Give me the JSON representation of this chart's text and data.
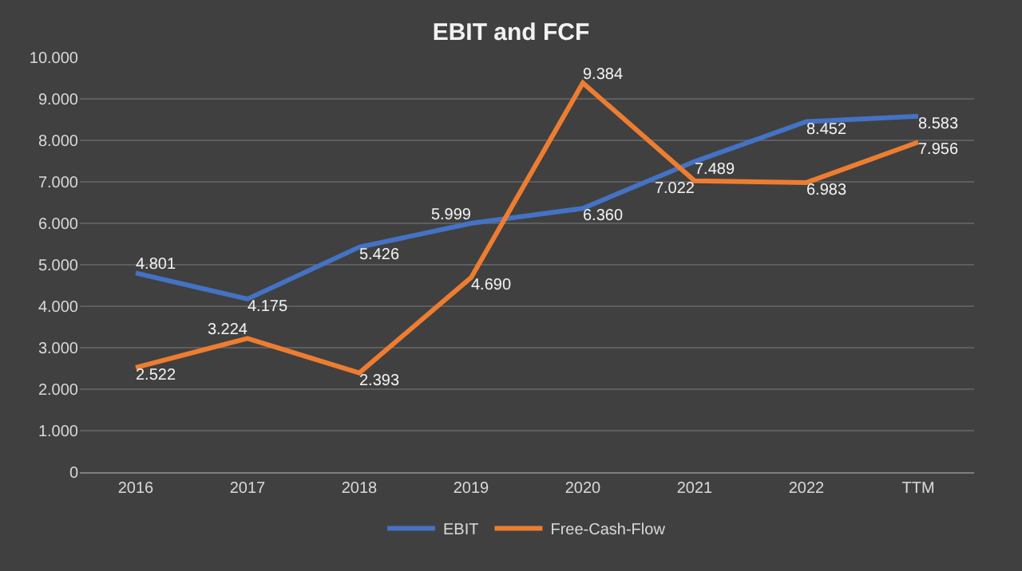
{
  "chart_data": {
    "type": "line",
    "title": "EBIT and FCF",
    "categories": [
      "2016",
      "2017",
      "2018",
      "2019",
      "2020",
      "2021",
      "2022",
      "TTM"
    ],
    "series": [
      {
        "name": "EBIT",
        "color": "#4472c4",
        "values": [
          4801,
          4175,
          5426,
          5999,
          6360,
          7489,
          8452,
          8583
        ],
        "value_labels": [
          "4.801",
          "4.175",
          "5.426",
          "5.999",
          "6.360",
          "7.489",
          "8.452",
          "8.583"
        ]
      },
      {
        "name": "Free-Cash-Flow",
        "color": "#ed7d31",
        "values": [
          2522,
          3224,
          2393,
          4690,
          9384,
          7022,
          6983,
          7956
        ],
        "value_labels": [
          "2.522",
          "3.224",
          "2.393",
          "4.690",
          "9.384",
          "7.022",
          "6.983",
          "7.956"
        ]
      }
    ],
    "ylim": [
      0,
      10000
    ],
    "yticks": [
      0,
      {
        "value": 1000,
        "label": "1.000"
      },
      {
        "value": 2000,
        "label": "2.000"
      },
      {
        "value": 3000,
        "label": "3.000"
      },
      {
        "value": 4000,
        "label": "4.000"
      },
      {
        "value": 5000,
        "label": "5.000"
      },
      {
        "value": 6000,
        "label": "6.000"
      },
      {
        "value": 7000,
        "label": "7.000"
      },
      {
        "value": 8000,
        "label": "8.000"
      },
      {
        "value": 9000,
        "label": "9.000"
      },
      {
        "value": 10000,
        "label": "10.000"
      }
    ],
    "grid": "y",
    "legend": "bottom",
    "marker": "none",
    "line_style": "solid"
  }
}
